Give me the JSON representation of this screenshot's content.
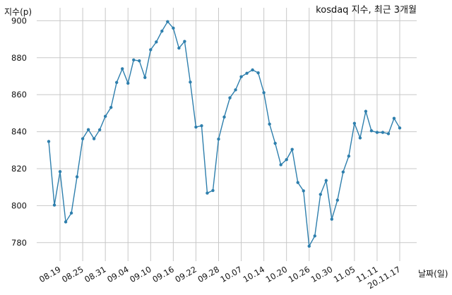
{
  "chart_data": {
    "type": "line",
    "title": "kosdaq 지수, 최근 3개월",
    "ylabel": "지수(p)",
    "xlabel": "날짜(일)",
    "ylim": [
      770,
      907
    ],
    "yticks": [
      780,
      800,
      820,
      840,
      860,
      880,
      900
    ],
    "grid": true,
    "legend": "none",
    "line_color": "#2e7fad",
    "tick_labels": [
      "08.19",
      "08.25",
      "08.31",
      "09.04",
      "09.10",
      "09.16",
      "09.22",
      "09.28",
      "10.07",
      "10.14",
      "10.20",
      "10.26",
      "10.30",
      "11.05",
      "11.11",
      "20.11.17"
    ],
    "tick_indices": [
      2,
      6,
      10,
      14,
      18,
      22,
      26,
      30,
      34,
      38,
      42,
      46,
      50,
      54,
      58,
      62
    ],
    "values": [
      834.7,
      800.3,
      818.4,
      791.2,
      796.0,
      815.6,
      836.2,
      841.1,
      836.2,
      841.0,
      848.3,
      853.1,
      866.6,
      874.0,
      866.2,
      878.8,
      878.3,
      869.3,
      884.3,
      888.5,
      894.4,
      899.5,
      896.0,
      885.2,
      888.8,
      866.8,
      842.5,
      843.2,
      806.8,
      808.2,
      836.0,
      847.9,
      858.3,
      862.6,
      869.7,
      871.6,
      873.4,
      871.8,
      861.1,
      844.1,
      833.7,
      822.1,
      824.9,
      830.4,
      812.5,
      808.0,
      778.1,
      783.6,
      806.1,
      813.6,
      792.7,
      803.0,
      818.2,
      826.8,
      844.5,
      836.6,
      851.0,
      840.5,
      839.6,
      839.6,
      838.9,
      847.2,
      842.0
    ]
  }
}
